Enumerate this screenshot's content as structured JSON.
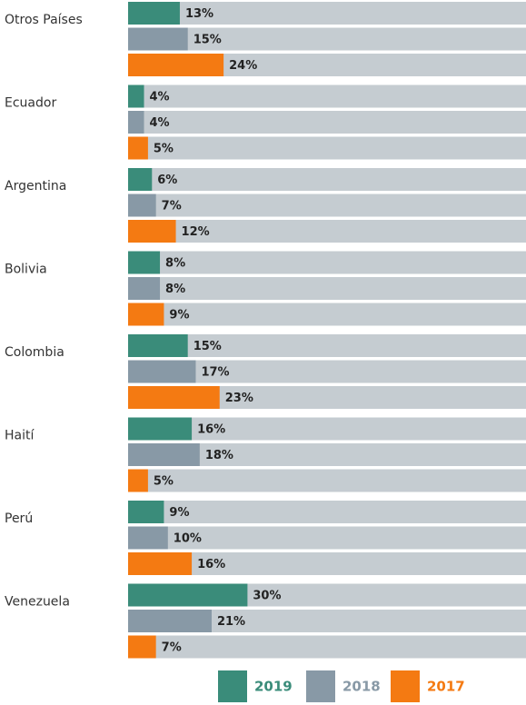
{
  "chart_data": {
    "type": "hbar",
    "categories": [
      "Otros Países",
      "Ecuador",
      "Argentina",
      "Bolivia",
      "Colombia",
      "Haití",
      "Perú",
      "Venezuela"
    ],
    "xlim": [
      0,
      100
    ],
    "track_color": "#c5ccd1",
    "series": [
      {
        "name": "2019",
        "color": "#3a8c7a",
        "values": [
          13,
          4,
          6,
          8,
          15,
          16,
          9,
          30
        ],
        "value_labels": [
          "13%",
          "4%",
          "6%",
          "8%",
          "15%",
          "16%",
          "9%",
          "30%"
        ]
      },
      {
        "name": "2018",
        "color": "#8899a6",
        "values": [
          15,
          4,
          7,
          8,
          17,
          18,
          10,
          21
        ],
        "value_labels": [
          "15%",
          "4%",
          "7%",
          "8%",
          "17%",
          "18%",
          "10%",
          "21%"
        ]
      },
      {
        "name": "2017",
        "color": "#f47a12",
        "values": [
          24,
          5,
          12,
          9,
          23,
          5,
          16,
          7
        ],
        "value_labels": [
          "24%",
          "5%",
          "12%",
          "9%",
          "23%",
          "5%",
          "16%",
          "7%"
        ]
      }
    ]
  }
}
